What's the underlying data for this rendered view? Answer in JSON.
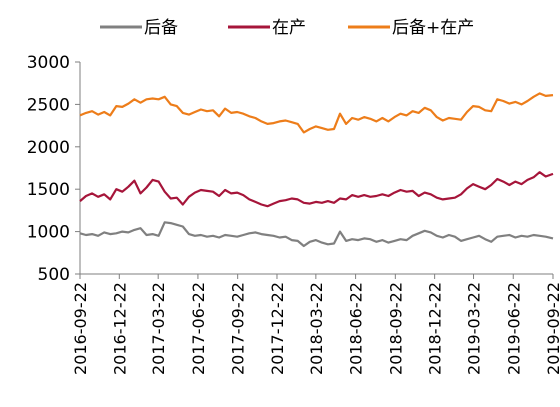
{
  "chart_data": {
    "type": "line",
    "title": "",
    "xlabel": "",
    "ylabel": "",
    "ylim": [
      500,
      3000
    ],
    "yticks": [
      500,
      1000,
      1500,
      2000,
      2500,
      3000
    ],
    "x_start": "2016-09-22",
    "x_end": "2019-09-22",
    "xtick_labels": [
      "2016-09-22",
      "2016-12-22",
      "2017-03-22",
      "2017-06-22",
      "2017-09-22",
      "2017-12-22",
      "2018-03-22",
      "2018-06-22",
      "2018-09-22",
      "2018-12-22",
      "2019-03-22",
      "2019-06-22",
      "2019-09-22"
    ],
    "grid": false,
    "legend_position": "top",
    "series": [
      {
        "name": "后备",
        "color": "#808080",
        "points": [
          [
            "2016-09-22",
            980
          ],
          [
            "2016-10-06",
            960
          ],
          [
            "2016-10-20",
            970
          ],
          [
            "2016-11-03",
            950
          ],
          [
            "2016-11-17",
            990
          ],
          [
            "2016-12-01",
            970
          ],
          [
            "2016-12-15",
            980
          ],
          [
            "2016-12-29",
            1000
          ],
          [
            "2017-01-12",
            990
          ],
          [
            "2017-01-26",
            1020
          ],
          [
            "2017-02-09",
            1040
          ],
          [
            "2017-02-23",
            960
          ],
          [
            "2017-03-09",
            970
          ],
          [
            "2017-03-23",
            950
          ],
          [
            "2017-04-06",
            1110
          ],
          [
            "2017-04-20",
            1100
          ],
          [
            "2017-05-04",
            1080
          ],
          [
            "2017-05-18",
            1060
          ],
          [
            "2017-06-01",
            970
          ],
          [
            "2017-06-15",
            950
          ],
          [
            "2017-06-29",
            960
          ],
          [
            "2017-07-13",
            940
          ],
          [
            "2017-07-27",
            950
          ],
          [
            "2017-08-10",
            930
          ],
          [
            "2017-08-24",
            960
          ],
          [
            "2017-09-07",
            950
          ],
          [
            "2017-09-21",
            940
          ],
          [
            "2017-10-05",
            960
          ],
          [
            "2017-10-19",
            980
          ],
          [
            "2017-11-02",
            990
          ],
          [
            "2017-11-16",
            970
          ],
          [
            "2017-11-30",
            960
          ],
          [
            "2017-12-14",
            950
          ],
          [
            "2017-12-28",
            930
          ],
          [
            "2018-01-11",
            940
          ],
          [
            "2018-01-25",
            900
          ],
          [
            "2018-02-08",
            890
          ],
          [
            "2018-02-22",
            830
          ],
          [
            "2018-03-08",
            880
          ],
          [
            "2018-03-22",
            900
          ],
          [
            "2018-04-05",
            870
          ],
          [
            "2018-04-19",
            850
          ],
          [
            "2018-05-03",
            860
          ],
          [
            "2018-05-17",
            1000
          ],
          [
            "2018-05-31",
            890
          ],
          [
            "2018-06-14",
            910
          ],
          [
            "2018-06-28",
            900
          ],
          [
            "2018-07-12",
            920
          ],
          [
            "2018-07-26",
            910
          ],
          [
            "2018-08-09",
            880
          ],
          [
            "2018-08-23",
            900
          ],
          [
            "2018-09-06",
            870
          ],
          [
            "2018-09-20",
            890
          ],
          [
            "2018-10-04",
            910
          ],
          [
            "2018-10-18",
            900
          ],
          [
            "2018-11-01",
            950
          ],
          [
            "2018-11-15",
            980
          ],
          [
            "2018-11-29",
            1010
          ],
          [
            "2018-12-13",
            990
          ],
          [
            "2018-12-27",
            950
          ],
          [
            "2019-01-10",
            930
          ],
          [
            "2019-01-24",
            960
          ],
          [
            "2019-02-07",
            940
          ],
          [
            "2019-02-21",
            890
          ],
          [
            "2019-03-07",
            910
          ],
          [
            "2019-03-21",
            930
          ],
          [
            "2019-04-04",
            950
          ],
          [
            "2019-04-18",
            910
          ],
          [
            "2019-05-02",
            880
          ],
          [
            "2019-05-16",
            940
          ],
          [
            "2019-05-30",
            950
          ],
          [
            "2019-06-13",
            960
          ],
          [
            "2019-06-27",
            930
          ],
          [
            "2019-07-11",
            950
          ],
          [
            "2019-07-25",
            940
          ],
          [
            "2019-08-08",
            960
          ],
          [
            "2019-08-22",
            950
          ],
          [
            "2019-09-05",
            940
          ],
          [
            "2019-09-22",
            920
          ]
        ]
      },
      {
        "name": "在产",
        "color": "#A6153A",
        "points": [
          [
            "2016-09-22",
            1360
          ],
          [
            "2016-10-06",
            1420
          ],
          [
            "2016-10-20",
            1450
          ],
          [
            "2016-11-03",
            1410
          ],
          [
            "2016-11-17",
            1440
          ],
          [
            "2016-12-01",
            1380
          ],
          [
            "2016-12-15",
            1500
          ],
          [
            "2016-12-29",
            1470
          ],
          [
            "2017-01-12",
            1530
          ],
          [
            "2017-01-26",
            1600
          ],
          [
            "2017-02-09",
            1450
          ],
          [
            "2017-02-23",
            1520
          ],
          [
            "2017-03-09",
            1610
          ],
          [
            "2017-03-23",
            1590
          ],
          [
            "2017-04-06",
            1470
          ],
          [
            "2017-04-20",
            1390
          ],
          [
            "2017-05-04",
            1400
          ],
          [
            "2017-05-18",
            1320
          ],
          [
            "2017-06-01",
            1410
          ],
          [
            "2017-06-15",
            1460
          ],
          [
            "2017-06-29",
            1490
          ],
          [
            "2017-07-13",
            1480
          ],
          [
            "2017-07-27",
            1470
          ],
          [
            "2017-08-10",
            1420
          ],
          [
            "2017-08-24",
            1490
          ],
          [
            "2017-09-07",
            1450
          ],
          [
            "2017-09-21",
            1460
          ],
          [
            "2017-10-05",
            1430
          ],
          [
            "2017-10-19",
            1380
          ],
          [
            "2017-11-02",
            1350
          ],
          [
            "2017-11-16",
            1320
          ],
          [
            "2017-11-30",
            1300
          ],
          [
            "2017-12-14",
            1330
          ],
          [
            "2017-12-28",
            1360
          ],
          [
            "2018-01-11",
            1370
          ],
          [
            "2018-01-25",
            1390
          ],
          [
            "2018-02-08",
            1380
          ],
          [
            "2018-02-22",
            1340
          ],
          [
            "2018-03-08",
            1330
          ],
          [
            "2018-03-22",
            1350
          ],
          [
            "2018-04-05",
            1340
          ],
          [
            "2018-04-19",
            1360
          ],
          [
            "2018-05-03",
            1340
          ],
          [
            "2018-05-17",
            1390
          ],
          [
            "2018-05-31",
            1380
          ],
          [
            "2018-06-14",
            1430
          ],
          [
            "2018-06-28",
            1410
          ],
          [
            "2018-07-12",
            1430
          ],
          [
            "2018-07-26",
            1410
          ],
          [
            "2018-08-09",
            1420
          ],
          [
            "2018-08-23",
            1440
          ],
          [
            "2018-09-06",
            1420
          ],
          [
            "2018-09-20",
            1460
          ],
          [
            "2018-10-04",
            1490
          ],
          [
            "2018-10-18",
            1470
          ],
          [
            "2018-11-01",
            1480
          ],
          [
            "2018-11-15",
            1420
          ],
          [
            "2018-11-29",
            1460
          ],
          [
            "2018-12-13",
            1440
          ],
          [
            "2018-12-27",
            1400
          ],
          [
            "2019-01-10",
            1380
          ],
          [
            "2019-01-24",
            1390
          ],
          [
            "2019-02-07",
            1400
          ],
          [
            "2019-02-21",
            1440
          ],
          [
            "2019-03-07",
            1510
          ],
          [
            "2019-03-21",
            1560
          ],
          [
            "2019-04-04",
            1530
          ],
          [
            "2019-04-18",
            1500
          ],
          [
            "2019-05-02",
            1550
          ],
          [
            "2019-05-16",
            1620
          ],
          [
            "2019-05-30",
            1590
          ],
          [
            "2019-06-13",
            1550
          ],
          [
            "2019-06-27",
            1590
          ],
          [
            "2019-07-11",
            1560
          ],
          [
            "2019-07-25",
            1610
          ],
          [
            "2019-08-08",
            1640
          ],
          [
            "2019-08-22",
            1700
          ],
          [
            "2019-09-05",
            1650
          ],
          [
            "2019-09-22",
            1680
          ]
        ]
      },
      {
        "name": "后备+在产",
        "color": "#ED7D1A",
        "points": [
          [
            "2016-09-22",
            2370
          ],
          [
            "2016-10-06",
            2400
          ],
          [
            "2016-10-20",
            2420
          ],
          [
            "2016-11-03",
            2380
          ],
          [
            "2016-11-17",
            2410
          ],
          [
            "2016-12-01",
            2370
          ],
          [
            "2016-12-15",
            2480
          ],
          [
            "2016-12-29",
            2470
          ],
          [
            "2017-01-12",
            2510
          ],
          [
            "2017-01-26",
            2560
          ],
          [
            "2017-02-09",
            2520
          ],
          [
            "2017-02-23",
            2560
          ],
          [
            "2017-03-09",
            2570
          ],
          [
            "2017-03-23",
            2560
          ],
          [
            "2017-04-06",
            2590
          ],
          [
            "2017-04-20",
            2500
          ],
          [
            "2017-05-04",
            2480
          ],
          [
            "2017-05-18",
            2400
          ],
          [
            "2017-06-01",
            2380
          ],
          [
            "2017-06-15",
            2410
          ],
          [
            "2017-06-29",
            2440
          ],
          [
            "2017-07-13",
            2420
          ],
          [
            "2017-07-27",
            2430
          ],
          [
            "2017-08-10",
            2360
          ],
          [
            "2017-08-24",
            2450
          ],
          [
            "2017-09-07",
            2400
          ],
          [
            "2017-09-21",
            2410
          ],
          [
            "2017-10-05",
            2390
          ],
          [
            "2017-10-19",
            2360
          ],
          [
            "2017-11-02",
            2340
          ],
          [
            "2017-11-16",
            2300
          ],
          [
            "2017-11-30",
            2270
          ],
          [
            "2017-12-14",
            2280
          ],
          [
            "2017-12-28",
            2300
          ],
          [
            "2018-01-11",
            2310
          ],
          [
            "2018-01-25",
            2290
          ],
          [
            "2018-02-08",
            2270
          ],
          [
            "2018-02-22",
            2170
          ],
          [
            "2018-03-08",
            2210
          ],
          [
            "2018-03-22",
            2240
          ],
          [
            "2018-04-05",
            2220
          ],
          [
            "2018-04-19",
            2200
          ],
          [
            "2018-05-03",
            2210
          ],
          [
            "2018-05-17",
            2390
          ],
          [
            "2018-05-31",
            2270
          ],
          [
            "2018-06-14",
            2340
          ],
          [
            "2018-06-28",
            2320
          ],
          [
            "2018-07-12",
            2350
          ],
          [
            "2018-07-26",
            2330
          ],
          [
            "2018-08-09",
            2300
          ],
          [
            "2018-08-23",
            2340
          ],
          [
            "2018-09-06",
            2300
          ],
          [
            "2018-09-20",
            2350
          ],
          [
            "2018-10-04",
            2390
          ],
          [
            "2018-10-18",
            2370
          ],
          [
            "2018-11-01",
            2420
          ],
          [
            "2018-11-15",
            2400
          ],
          [
            "2018-11-29",
            2460
          ],
          [
            "2018-12-13",
            2430
          ],
          [
            "2018-12-27",
            2350
          ],
          [
            "2019-01-10",
            2310
          ],
          [
            "2019-01-24",
            2340
          ],
          [
            "2019-02-07",
            2330
          ],
          [
            "2019-02-21",
            2320
          ],
          [
            "2019-03-07",
            2410
          ],
          [
            "2019-03-21",
            2480
          ],
          [
            "2019-04-04",
            2470
          ],
          [
            "2019-04-18",
            2430
          ],
          [
            "2019-05-02",
            2420
          ],
          [
            "2019-05-16",
            2560
          ],
          [
            "2019-05-30",
            2540
          ],
          [
            "2019-06-13",
            2510
          ],
          [
            "2019-06-27",
            2530
          ],
          [
            "2019-07-11",
            2500
          ],
          [
            "2019-07-25",
            2540
          ],
          [
            "2019-08-08",
            2590
          ],
          [
            "2019-08-22",
            2630
          ],
          [
            "2019-09-05",
            2600
          ],
          [
            "2019-09-22",
            2610
          ]
        ]
      }
    ]
  }
}
